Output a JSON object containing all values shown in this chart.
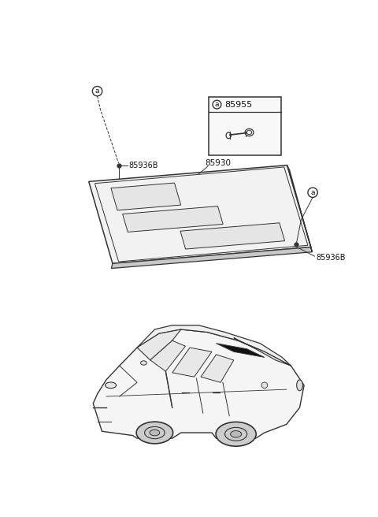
{
  "bg_color": "#ffffff",
  "part_label_85930": "85930",
  "part_label_85936B": "85936B",
  "part_label_85955": "85955",
  "circle_a_label": "a",
  "line_color": "#333333",
  "text_color": "#111111",
  "shelf_face_color": "#f2f2f2",
  "shelf_edge_color": "#555555",
  "slot_fill": "#dddddd",
  "car_fill": "#f5f5f5",
  "shelf_on_car_fill": "#111111",
  "inset_bg": "#f8f8f8"
}
